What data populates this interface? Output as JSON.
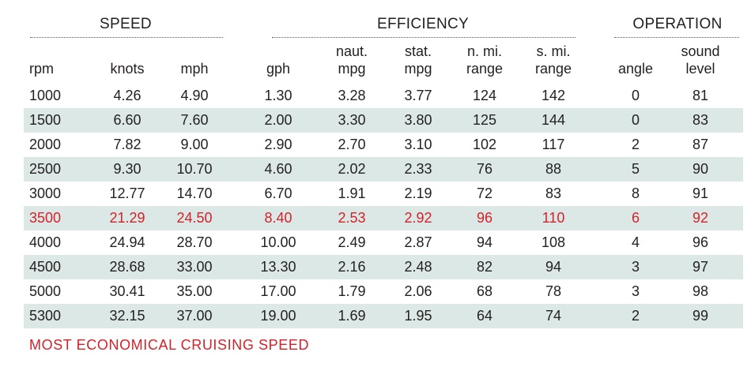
{
  "groups": {
    "speed": "SPEED",
    "efficiency": "EFFICIENCY",
    "operation": "OPERATION"
  },
  "columns": [
    {
      "key": "rpm",
      "line1": "",
      "line2": "rpm"
    },
    {
      "key": "knots",
      "line1": "",
      "line2": "knots"
    },
    {
      "key": "mph",
      "line1": "",
      "line2": "mph"
    },
    {
      "key": "gph",
      "line1": "",
      "line2": "gph"
    },
    {
      "key": "naut_mpg",
      "line1": "naut.",
      "line2": "mpg"
    },
    {
      "key": "stat_mpg",
      "line1": "stat.",
      "line2": "mpg"
    },
    {
      "key": "n_mi_range",
      "line1": "n. mi.",
      "line2": "range"
    },
    {
      "key": "s_mi_range",
      "line1": "s. mi.",
      "line2": "range"
    },
    {
      "key": "angle",
      "line1": "",
      "line2": "angle"
    },
    {
      "key": "sound_level",
      "line1": "sound",
      "line2": "level"
    }
  ],
  "rows": [
    {
      "rpm": "1000",
      "knots": "4.26",
      "mph": "4.90",
      "gph": "1.30",
      "naut_mpg": "3.28",
      "stat_mpg": "3.77",
      "n_mi_range": "124",
      "s_mi_range": "142",
      "angle": "0",
      "sound_level": "81",
      "highlight": false
    },
    {
      "rpm": "1500",
      "knots": "6.60",
      "mph": "7.60",
      "gph": "2.00",
      "naut_mpg": "3.30",
      "stat_mpg": "3.80",
      "n_mi_range": "125",
      "s_mi_range": "144",
      "angle": "0",
      "sound_level": "83",
      "highlight": false
    },
    {
      "rpm": "2000",
      "knots": "7.82",
      "mph": "9.00",
      "gph": "2.90",
      "naut_mpg": "2.70",
      "stat_mpg": "3.10",
      "n_mi_range": "102",
      "s_mi_range": "117",
      "angle": "2",
      "sound_level": "87",
      "highlight": false
    },
    {
      "rpm": "2500",
      "knots": "9.30",
      "mph": "10.70",
      "gph": "4.60",
      "naut_mpg": "2.02",
      "stat_mpg": "2.33",
      "n_mi_range": "76",
      "s_mi_range": "88",
      "angle": "5",
      "sound_level": "90",
      "highlight": false
    },
    {
      "rpm": "3000",
      "knots": "12.77",
      "mph": "14.70",
      "gph": "6.70",
      "naut_mpg": "1.91",
      "stat_mpg": "2.19",
      "n_mi_range": "72",
      "s_mi_range": "83",
      "angle": "8",
      "sound_level": "91",
      "highlight": false
    },
    {
      "rpm": "3500",
      "knots": "21.29",
      "mph": "24.50",
      "gph": "8.40",
      "naut_mpg": "2.53",
      "stat_mpg": "2.92",
      "n_mi_range": "96",
      "s_mi_range": "110",
      "angle": "6",
      "sound_level": "92",
      "highlight": true
    },
    {
      "rpm": "4000",
      "knots": "24.94",
      "mph": "28.70",
      "gph": "10.00",
      "naut_mpg": "2.49",
      "stat_mpg": "2.87",
      "n_mi_range": "94",
      "s_mi_range": "108",
      "angle": "4",
      "sound_level": "96",
      "highlight": false
    },
    {
      "rpm": "4500",
      "knots": "28.68",
      "mph": "33.00",
      "gph": "13.30",
      "naut_mpg": "2.16",
      "stat_mpg": "2.48",
      "n_mi_range": "82",
      "s_mi_range": "94",
      "angle": "3",
      "sound_level": "97",
      "highlight": false
    },
    {
      "rpm": "5000",
      "knots": "30.41",
      "mph": "35.00",
      "gph": "17.00",
      "naut_mpg": "1.79",
      "stat_mpg": "2.06",
      "n_mi_range": "68",
      "s_mi_range": "78",
      "angle": "3",
      "sound_level": "98",
      "highlight": false
    },
    {
      "rpm": "5300",
      "knots": "32.15",
      "mph": "37.00",
      "gph": "19.00",
      "naut_mpg": "1.69",
      "stat_mpg": "1.95",
      "n_mi_range": "64",
      "s_mi_range": "74",
      "angle": "2",
      "sound_level": "99",
      "highlight": false
    }
  ],
  "footnote": "MOST ECONOMICAL CRUISING SPEED",
  "colors": {
    "highlight": "#d2232a",
    "shade": "#dce8e6",
    "text": "#231f20"
  }
}
